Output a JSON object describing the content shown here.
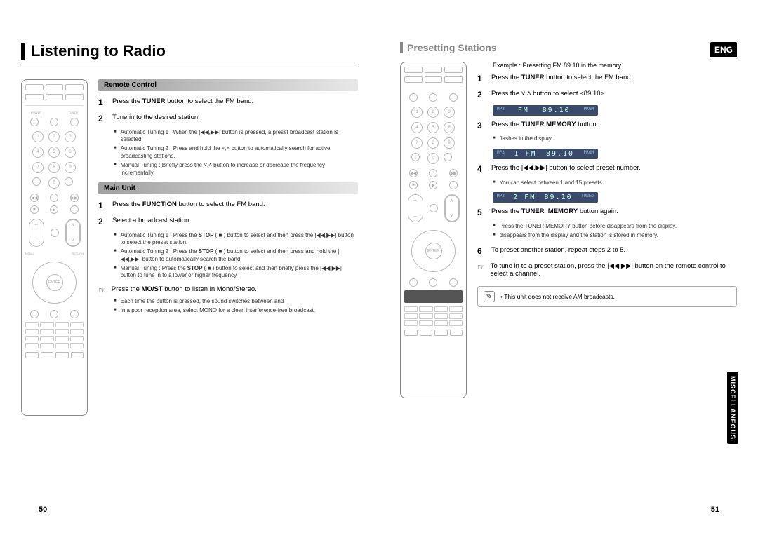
{
  "left": {
    "title": "Listening to Radio",
    "sec_remote": "Remote Control",
    "sec_main": "Main Unit",
    "r1": "Press the <b>TUNER</b> button to select the FM band.",
    "r2": "Tune in to the desired station.",
    "rb1": "Automatic Tuning 1 : When the |◀◀,▶▶| button is pressed, a preset broadcast station is selected.",
    "rb2": "Automatic Tuning 2 : Press and hold the ˅,˄ button to automatically search for active broadcasting stations.",
    "rb3": "Manual Tuning : Briefly press the ˅,˄ button to increase or decrease the frequency incrementally.",
    "m1": "Press the <b>FUNCTION</b> button to select the FM band.",
    "m2": "Select a broadcast station.",
    "mb1": "Automatic Tuning 1 : Press the <b>STOP</b> ( ■ ) button to select <b><PRESET></b> and then press the |◀◀,▶▶| button to select the preset station.",
    "mb2": "Automatic Tuning 2 : Press the <b>STOP</b> ( ■ ) button to select <b><MANUAL></b> and then press and hold the |◀◀,▶▶| button to automatically search the band.",
    "mb3": "Manual Tuning : Press the <b>STOP</b> ( ■ ) button to select <b><MANUAL></b> and then briefly press the |◀◀,▶▶| button to tune in to a lower or higher frequency.",
    "hand1": "Press the <b>MO/ST</b> button to listen in Mono/Stereo.",
    "hb1": "Each time the button is pressed, the sound switches between <b><STEREO></b> and <b><MONO></b>.",
    "hb2": "In a poor reception area, select MONO for a clear, interference-free broadcast.",
    "pagenum": "50"
  },
  "right": {
    "lang": "ENG",
    "sidetab": "MISCELLANEOUS",
    "subtitle": "Presetting Stations",
    "example": "Example : Presetting FM 89.10 in the memory",
    "s1": "Press the <b>TUNER</b> button to select the FM band.",
    "s2": "Press the ˅,˄ button to select <89.10>.",
    "d1_left": "FM",
    "d1_right": "89.10",
    "s3": "Press the <b>TUNER MEMORY</b> button.",
    "s3b1": "<b><PRGM></b> flashes in the display.",
    "d2_left": "1 FM",
    "d2_right": "89.10",
    "s4": "Press the |◀◀,▶▶| button to select preset number.",
    "s4b1": "You can select between 1 and 15 presets.",
    "d3_left": "2 FM",
    "d3_right": "89.10",
    "s5": "Press the <b>TUNER&nbsp;&nbsp;MEMORY</b> button again.",
    "s5b1": "Press the TUNER MEMORY button before <b><PRGM></b> disappears from the display.",
    "s5b2": "<b><PRGM></b> disappears from the display and the station is stored in memory.",
    "s6": "To preset another station, repeat steps 2 to 5.",
    "hand1": "To tune in to a preset station, press the |◀◀,▶▶| button on the remote control to select a channel.",
    "note": "This unit does not receive AM broadcasts.",
    "pagenum": "51"
  }
}
